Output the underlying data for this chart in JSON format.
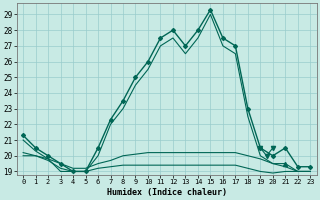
{
  "bg_color": "#c8eae4",
  "grid_color": "#99cccc",
  "line_color": "#006655",
  "xlabel": "Humidex (Indice chaleur)",
  "xlim": [
    -0.5,
    23.5
  ],
  "ylim": [
    18.8,
    29.7
  ],
  "yticks": [
    19,
    20,
    21,
    22,
    23,
    24,
    25,
    26,
    27,
    28,
    29
  ],
  "xticks": [
    0,
    1,
    2,
    3,
    4,
    5,
    6,
    7,
    8,
    9,
    10,
    11,
    12,
    13,
    14,
    15,
    16,
    17,
    18,
    19,
    20,
    21,
    22,
    23
  ],
  "series": [
    {
      "x": [
        0,
        1,
        2,
        3,
        4,
        5,
        6,
        7,
        8,
        9,
        10,
        11,
        12,
        13,
        14,
        15,
        16,
        17,
        18,
        19,
        20,
        21,
        22,
        23
      ],
      "y": [
        21.3,
        20.5,
        20.0,
        19.5,
        19.0,
        19.0,
        20.5,
        22.3,
        23.5,
        25.0,
        26.0,
        27.5,
        28.0,
        27.0,
        28.0,
        29.3,
        27.5,
        27.0,
        23.0,
        20.5,
        20.0,
        20.5,
        19.3,
        19.3
      ],
      "marker": "D",
      "markersize": 2.0,
      "linewidth": 1.0,
      "linestyle": "-"
    },
    {
      "x": [
        0,
        1,
        2,
        3,
        4,
        5,
        6,
        7,
        8,
        9,
        10,
        11,
        12,
        13,
        14,
        15,
        16,
        17,
        18,
        19,
        20,
        21,
        22,
        23
      ],
      "y": [
        21.0,
        20.3,
        19.8,
        19.0,
        19.0,
        19.0,
        20.0,
        22.0,
        23.0,
        24.5,
        25.5,
        27.0,
        27.5,
        26.5,
        27.5,
        29.0,
        27.0,
        26.5,
        22.5,
        20.0,
        19.5,
        19.5,
        19.0,
        19.0
      ],
      "marker": null,
      "markersize": 0,
      "linewidth": 0.8,
      "linestyle": "-"
    },
    {
      "x": [
        0,
        1,
        2,
        3,
        4,
        5,
        6,
        7,
        8,
        9,
        10,
        11,
        12,
        13,
        14,
        15,
        16,
        17,
        18,
        19,
        20,
        21,
        22,
        23
      ],
      "y": [
        20.0,
        20.0,
        19.8,
        19.5,
        19.2,
        19.2,
        19.5,
        19.7,
        20.0,
        20.1,
        20.2,
        20.2,
        20.2,
        20.2,
        20.2,
        20.2,
        20.2,
        20.2,
        20.0,
        19.8,
        19.5,
        19.3,
        19.0,
        19.0
      ],
      "marker": null,
      "markersize": 0,
      "linewidth": 0.8,
      "linestyle": "-"
    },
    {
      "x": [
        0,
        1,
        2,
        3,
        4,
        5,
        6,
        7,
        8,
        9,
        10,
        11,
        12,
        13,
        14,
        15,
        16,
        17,
        18,
        19,
        20,
        21,
        22,
        23
      ],
      "y": [
        20.2,
        20.0,
        19.7,
        19.2,
        19.0,
        19.0,
        19.2,
        19.3,
        19.4,
        19.4,
        19.4,
        19.4,
        19.4,
        19.4,
        19.4,
        19.4,
        19.4,
        19.4,
        19.2,
        19.0,
        18.9,
        19.0,
        19.0,
        19.0
      ],
      "marker": null,
      "markersize": 0,
      "linewidth": 0.8,
      "linestyle": "-"
    },
    {
      "x": [
        19,
        19.5,
        20
      ],
      "y": [
        20.5,
        20.0,
        20.5
      ],
      "marker": "v",
      "markersize": 3.0,
      "linewidth": 0.8,
      "linestyle": "-"
    },
    {
      "x": [
        21
      ],
      "y": [
        19.5
      ],
      "marker": "^",
      "markersize": 3.0,
      "linewidth": 0,
      "linestyle": "none"
    }
  ]
}
